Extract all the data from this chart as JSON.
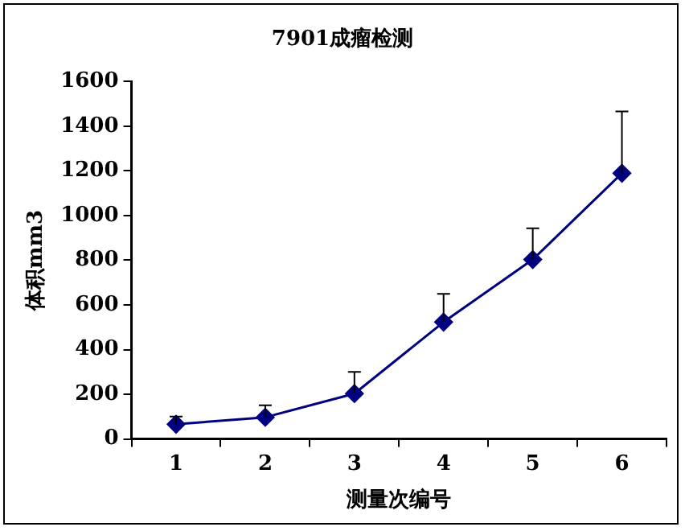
{
  "chart_data": {
    "type": "line",
    "title": "7901成瘤检测",
    "xlabel": "测量次编号",
    "ylabel": "体积mm3",
    "categories": [
      "1",
      "2",
      "3",
      "4",
      "5",
      "6"
    ],
    "series": [
      {
        "color": "#000080",
        "values": [
          66,
          97,
          203,
          523,
          803,
          1189
        ],
        "errors": [
          [
            66,
            100
          ],
          [
            97,
            151
          ],
          [
            203,
            300
          ],
          [
            523,
            649
          ],
          [
            803,
            943
          ],
          [
            1189,
            1466
          ]
        ]
      }
    ],
    "ylim": [
      0,
      1600
    ],
    "yticks": [
      0,
      200,
      400,
      600,
      800,
      1000,
      1200,
      1400,
      1600
    ],
    "grid": false,
    "legend": false,
    "marker": "diamond",
    "line_style": "solid"
  }
}
